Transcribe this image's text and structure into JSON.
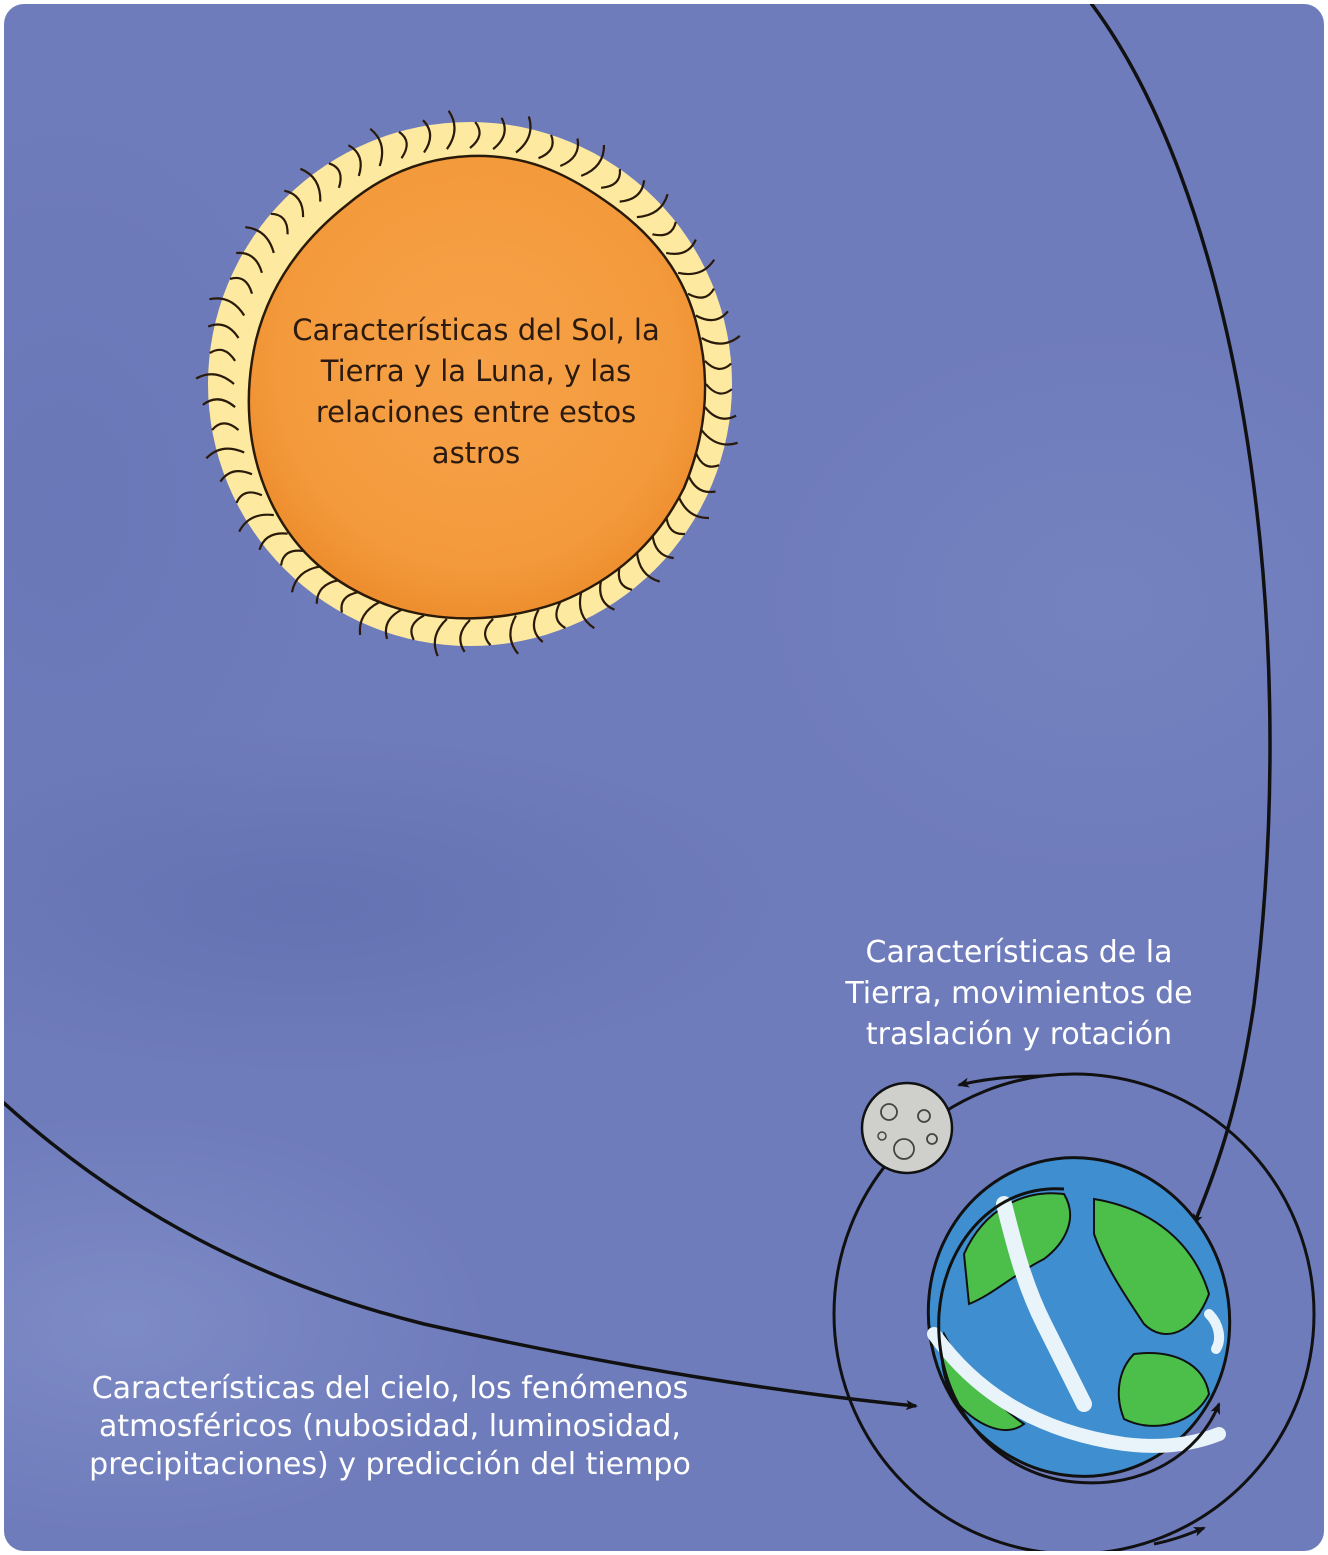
{
  "labels": {
    "sun": "Características del Sol, la Tierra y la Luna, y las relaciones entre estos astros",
    "earth": "Características de la Tierra, movimientos de traslación y rotación",
    "sky": "Características del cielo, los fenómenos atmosféricos (nubosidad, luminosidad, precipitaciones) y predicción del tiempo"
  },
  "colors": {
    "background": "#6f7cbc",
    "sun_core": "#f39a3c",
    "sun_corona": "#fde9a0",
    "earth_ocean": "#3f8fd0",
    "earth_land": "#4cbf4a",
    "moon": "#cfd0cc",
    "arrows": "#111111"
  },
  "icons": [
    "sun-icon",
    "earth-icon",
    "moon-icon"
  ]
}
